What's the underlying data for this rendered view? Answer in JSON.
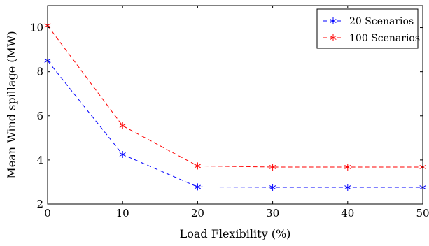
{
  "chart_data": {
    "type": "line",
    "xlabel": "Load Flexibility (%)",
    "ylabel": "Mean Wind spillage (MW)",
    "xlim": [
      0,
      50
    ],
    "ylim": [
      2,
      11
    ],
    "xticks": [
      "0",
      "10",
      "20",
      "30",
      "40",
      "50"
    ],
    "yticks": [
      "2",
      "4",
      "6",
      "8",
      "10"
    ],
    "grid": false,
    "legend_position": "top-right",
    "x": [
      0,
      10,
      20,
      30,
      40,
      50
    ],
    "series": [
      {
        "name": "20 Scenarios",
        "color": "#0000ff",
        "marker": "asterisk",
        "line": "dashed",
        "values": [
          8.5,
          4.25,
          2.78,
          2.76,
          2.76,
          2.76
        ]
      },
      {
        "name": "100 Scenarios",
        "color": "#ff0000",
        "marker": "asterisk",
        "line": "dashed",
        "values": [
          10.1,
          5.55,
          3.73,
          3.68,
          3.68,
          3.68
        ]
      }
    ]
  }
}
